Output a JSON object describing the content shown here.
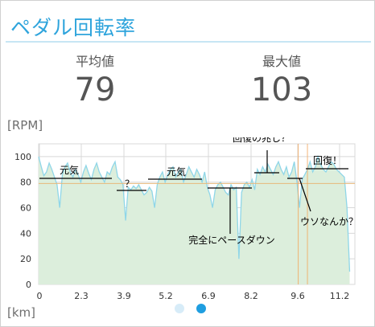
{
  "header": {
    "title": "ペダル回転率"
  },
  "stats": [
    {
      "label": "平均値",
      "value": "79"
    },
    {
      "label": "最大値",
      "value": "103"
    }
  ],
  "units": {
    "y": "[RPM]",
    "x": "[km]"
  },
  "chart_data": {
    "type": "area",
    "xlabel": "[km]",
    "ylabel": "[RPM]",
    "x_tick_labels": [
      "0",
      "2.3",
      "3.9",
      "5.2",
      "6.9",
      "8.2",
      "9.6",
      "11.2"
    ],
    "y_tick_labels": [
      "0",
      "20",
      "40",
      "60",
      "80",
      "100"
    ],
    "xlim": [
      0,
      12.0
    ],
    "ylim": [
      0,
      110
    ],
    "grid": true,
    "series": [
      {
        "x": [
          0,
          0.1,
          0.2,
          0.3,
          0.4,
          0.5,
          0.6,
          0.7,
          0.8,
          0.9,
          1.0,
          1.1,
          1.2,
          1.3,
          1.4,
          1.5,
          1.6,
          1.7,
          1.8,
          1.9,
          2.0,
          2.1,
          2.2,
          2.3,
          2.4,
          2.5,
          2.6,
          2.7,
          2.8,
          2.9,
          3.0,
          3.1,
          3.2,
          3.3,
          3.4,
          3.5,
          3.6,
          3.7,
          3.8,
          3.9,
          4.0,
          4.1,
          4.2,
          4.3,
          4.4,
          4.5,
          4.6,
          4.7,
          4.8,
          4.9,
          5.0,
          5.1,
          5.2,
          5.3,
          5.4,
          5.5,
          5.6,
          5.7,
          5.8,
          5.9,
          6.0,
          6.1,
          6.2,
          6.3,
          6.4,
          6.5,
          6.6,
          6.7,
          6.8,
          6.9,
          7.0,
          7.1,
          7.2,
          7.3,
          7.4,
          7.5,
          7.6,
          7.7,
          7.8,
          7.9,
          8.0,
          8.1,
          8.2,
          8.3,
          8.4,
          8.5,
          8.6,
          8.7,
          8.8,
          8.9,
          9.0,
          9.1,
          9.2,
          9.3,
          9.4,
          9.5,
          9.6,
          9.7,
          9.8,
          9.9,
          10.0,
          10.1,
          10.2,
          10.3,
          10.4,
          10.5,
          10.6,
          10.7,
          10.8,
          10.9,
          11.0,
          11.1,
          11.2,
          11.3,
          11.4,
          11.5,
          11.6,
          11.7,
          11.8
        ],
        "values": [
          100,
          92,
          85,
          88,
          95,
          90,
          84,
          78,
          60,
          86,
          92,
          95,
          88,
          84,
          90,
          86,
          80,
          88,
          93,
          87,
          82,
          90,
          95,
          88,
          84,
          80,
          88,
          86,
          92,
          96,
          84,
          82,
          78,
          50,
          76,
          74,
          77,
          75,
          78,
          74,
          70,
          72,
          76,
          73,
          60,
          78,
          84,
          88,
          80,
          86,
          90,
          92,
          84,
          88,
          90,
          80,
          86,
          92,
          88,
          84,
          90,
          86,
          80,
          88,
          76,
          70,
          60,
          74,
          78,
          80,
          76,
          72,
          70,
          78,
          74,
          76,
          20,
          72,
          78,
          80,
          76,
          82,
          74,
          90,
          86,
          92,
          88,
          94,
          90,
          86,
          92,
          96,
          90,
          86,
          92,
          84,
          88,
          96,
          80,
          60,
          82,
          86,
          90,
          96,
          88,
          92,
          100,
          94,
          90,
          88,
          92,
          96,
          94,
          90,
          88,
          86,
          84,
          60,
          10
        ]
      }
    ],
    "annotations": [
      {
        "text": "元気"
      },
      {
        "text": "？"
      },
      {
        "text": "元気"
      },
      {
        "text": "完全にペースダウン"
      },
      {
        "text": "回復の兆し？"
      },
      {
        "text": "ウソなんか？"
      },
      {
        "text": "回復！"
      }
    ]
  },
  "pager": {
    "pages": 2,
    "current": 2
  },
  "colors": {
    "accent": "#2ea4dc",
    "line": "#8fd6e8",
    "fill": "#dceedc",
    "avg_line": "#e8b87a",
    "marker": "#f2a55a",
    "grid": "#d8d8d8",
    "dot_active": "#1f9ee0",
    "dot_inactive": "#d7ecf8"
  }
}
